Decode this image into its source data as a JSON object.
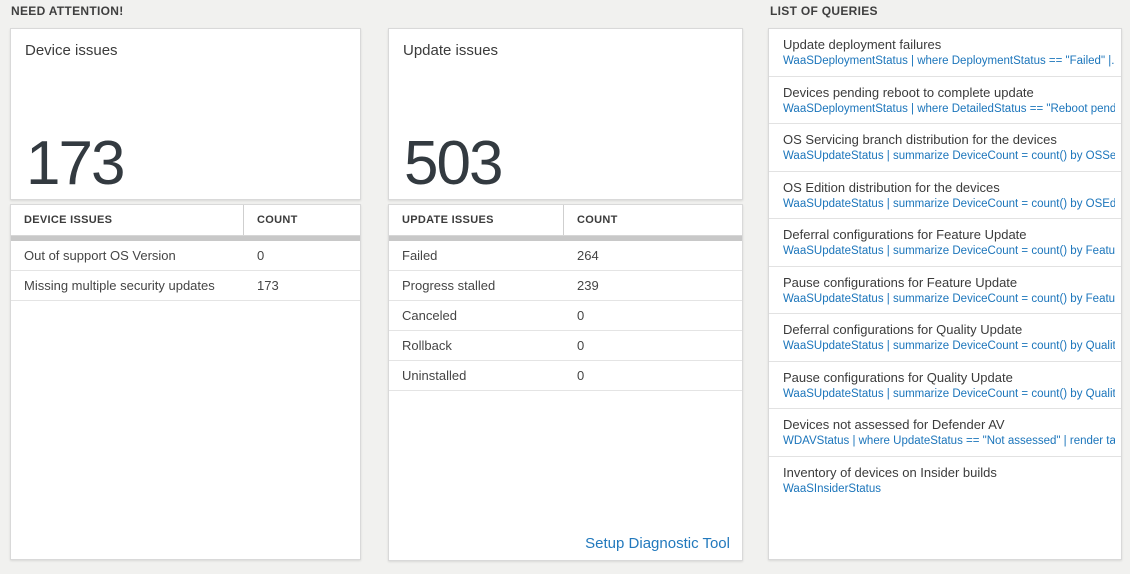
{
  "need_attention": {
    "title": "NEED ATTENTION!",
    "device_card": {
      "title": "Device issues",
      "count": "173"
    },
    "device_table": {
      "col_issue": "DEVICE ISSUES",
      "col_count": "COUNT",
      "rows": [
        {
          "label": "Out of support OS Version",
          "count": "0"
        },
        {
          "label": "Missing multiple security updates",
          "count": "173"
        }
      ]
    },
    "update_card": {
      "title": "Update issues",
      "count": "503"
    },
    "update_table": {
      "col_issue": "UPDATE ISSUES",
      "col_count": "COUNT",
      "rows": [
        {
          "label": "Failed",
          "count": "264"
        },
        {
          "label": "Progress stalled",
          "count": "239"
        },
        {
          "label": "Canceled",
          "count": "0"
        },
        {
          "label": "Rollback",
          "count": "0"
        },
        {
          "label": "Uninstalled",
          "count": "0"
        }
      ],
      "footer_link": "Setup Diagnostic Tool"
    }
  },
  "queries_panel": {
    "title": "LIST OF QUERIES",
    "items": [
      {
        "title": "Update deployment failures",
        "query": "WaaSDeploymentStatus | where DeploymentStatus == \"Failed\" |..."
      },
      {
        "title": "Devices pending reboot to complete update",
        "query": "WaaSDeploymentStatus | where DetailedStatus == \"Reboot pend..."
      },
      {
        "title": "OS Servicing branch distribution for the devices",
        "query": "WaaSUpdateStatus | summarize DeviceCount = count() by OSSer..."
      },
      {
        "title": "OS Edition distribution for the devices",
        "query": "WaaSUpdateStatus | summarize DeviceCount = count() by OSEdit..."
      },
      {
        "title": "Deferral configurations for Feature Update",
        "query": "WaaSUpdateStatus | summarize DeviceCount = count() by Featur..."
      },
      {
        "title": "Pause configurations for Feature Update",
        "query": "WaaSUpdateStatus | summarize DeviceCount = count() by Featur..."
      },
      {
        "title": "Deferral configurations for Quality Update",
        "query": "WaaSUpdateStatus | summarize DeviceCount = count() by Qualit..."
      },
      {
        "title": "Pause configurations for Quality Update",
        "query": "WaaSUpdateStatus | summarize DeviceCount = count() by Qualit..."
      },
      {
        "title": "Devices not assessed for Defender AV",
        "query": "WDAVStatus | where UpdateStatus == \"Not assessed\" | render ta..."
      },
      {
        "title": "Inventory of devices on Insider builds",
        "query": "WaaSInsiderStatus"
      }
    ]
  },
  "colors": {
    "query_link_blue": "#1b75bb",
    "footer_link_blue": "#2279bd",
    "big_number_dark": "#333a40",
    "scrollbar_gray": "#c8c8c8",
    "page_background": "#f1f1ef"
  }
}
